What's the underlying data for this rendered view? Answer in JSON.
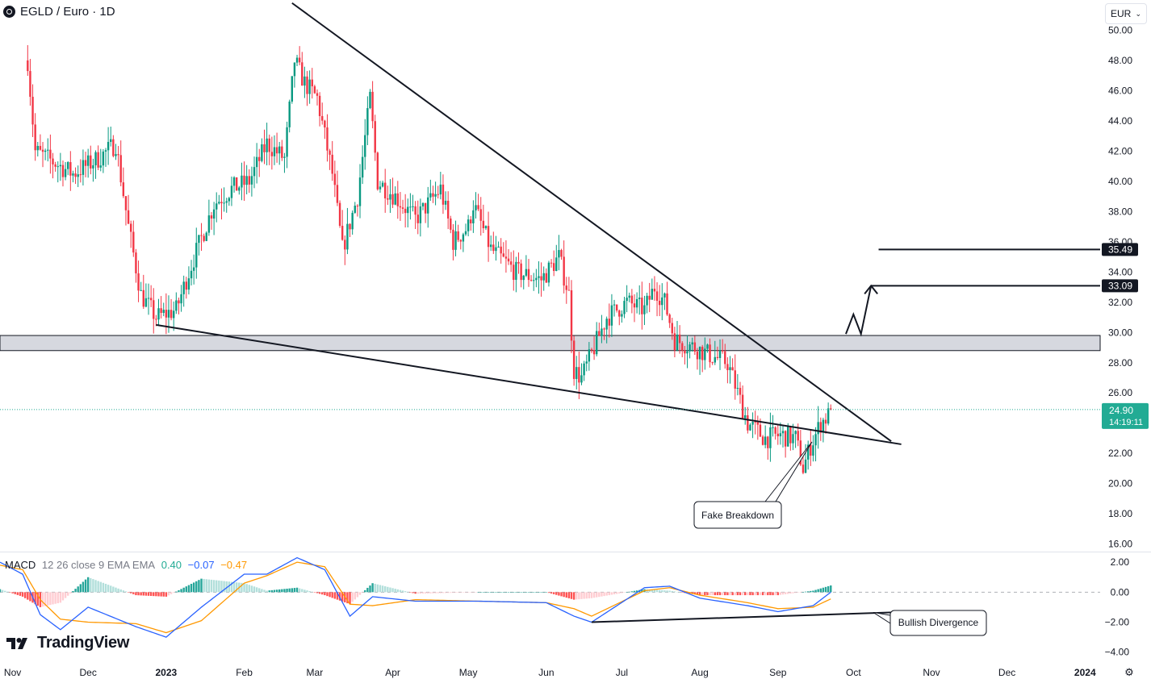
{
  "header": {
    "symbol_title": "EGLD / Euro · 1D",
    "currency_button": "EUR"
  },
  "macd_legend": {
    "name": "MACD",
    "params": "12 26 close 9 EMA EMA",
    "histogram": "0.40",
    "macd": "−0.07",
    "signal": "−0.47",
    "colors": {
      "histogram": "#22ab94",
      "macd": "#2962ff",
      "signal": "#ff9800"
    }
  },
  "branding": {
    "logo_text": "TradingView"
  },
  "chart_data": [
    {
      "type": "candlestick",
      "title": "EGLD / Euro · 1D",
      "y_axis": {
        "ticks": [
          16,
          18,
          20,
          22,
          24,
          26,
          28,
          30,
          32,
          34,
          36,
          38,
          40,
          42,
          44,
          46,
          48,
          50
        ],
        "ylim": [
          15.5,
          52
        ]
      },
      "x_axis": {
        "ticks": [
          "Nov",
          "Dec",
          "2023",
          "Feb",
          "Mar",
          "Apr",
          "May",
          "Jun",
          "Jul",
          "Aug",
          "Sep",
          "Oct",
          "Nov",
          "Dec",
          "2024"
        ],
        "xlim": [
          "2022-10-27",
          "2024-01-07"
        ]
      },
      "price_key_points": [
        {
          "date": "2022-11-07",
          "close": 48.0
        },
        {
          "date": "2022-11-10",
          "close": 42.0
        },
        {
          "date": "2022-11-15",
          "close": 41.5
        },
        {
          "date": "2022-11-25",
          "close": 40.5
        },
        {
          "date": "2022-12-05",
          "close": 41.5
        },
        {
          "date": "2022-12-12",
          "close": 42.5
        },
        {
          "date": "2022-12-17",
          "close": 37.0
        },
        {
          "date": "2022-12-22",
          "close": 32.5
        },
        {
          "date": "2022-12-28",
          "close": 31.0
        },
        {
          "date": "2023-01-05",
          "close": 31.5
        },
        {
          "date": "2023-01-10",
          "close": 34.0
        },
        {
          "date": "2023-01-20",
          "close": 38.5
        },
        {
          "date": "2023-01-27",
          "close": 39.5
        },
        {
          "date": "2023-02-03",
          "close": 40.0
        },
        {
          "date": "2023-02-10",
          "close": 42.5
        },
        {
          "date": "2023-02-17",
          "close": 41.5
        },
        {
          "date": "2023-02-21",
          "close": 48.0
        },
        {
          "date": "2023-02-25",
          "close": 46.5
        },
        {
          "date": "2023-03-02",
          "close": 45.5
        },
        {
          "date": "2023-03-08",
          "close": 40.5
        },
        {
          "date": "2023-03-12",
          "close": 35.5
        },
        {
          "date": "2023-03-18",
          "close": 39.0
        },
        {
          "date": "2023-03-23",
          "close": 45.5
        },
        {
          "date": "2023-03-26",
          "close": 40.0
        },
        {
          "date": "2023-04-02",
          "close": 39.0
        },
        {
          "date": "2023-04-10",
          "close": 37.5
        },
        {
          "date": "2023-04-20",
          "close": 39.5
        },
        {
          "date": "2023-04-25",
          "close": 36.0
        },
        {
          "date": "2023-05-01",
          "close": 37.0
        },
        {
          "date": "2023-05-03",
          "close": 38.5
        },
        {
          "date": "2023-05-10",
          "close": 35.5
        },
        {
          "date": "2023-05-20",
          "close": 34.0
        },
        {
          "date": "2023-05-30",
          "close": 33.5
        },
        {
          "date": "2023-06-06",
          "close": 35.0
        },
        {
          "date": "2023-06-10",
          "close": 32.5
        },
        {
          "date": "2023-06-12",
          "close": 27.5
        },
        {
          "date": "2023-06-15",
          "close": 27.0
        },
        {
          "date": "2023-06-20",
          "close": 29.0
        },
        {
          "date": "2023-06-25",
          "close": 31.0
        },
        {
          "date": "2023-07-03",
          "close": 32.0
        },
        {
          "date": "2023-07-10",
          "close": 31.5
        },
        {
          "date": "2023-07-14",
          "close": 33.0
        },
        {
          "date": "2023-07-18",
          "close": 32.0
        },
        {
          "date": "2023-07-22",
          "close": 29.5
        },
        {
          "date": "2023-07-30",
          "close": 29.0
        },
        {
          "date": "2023-08-05",
          "close": 28.5
        },
        {
          "date": "2023-08-12",
          "close": 28.0
        },
        {
          "date": "2023-08-16",
          "close": 26.0
        },
        {
          "date": "2023-08-20",
          "close": 24.0
        },
        {
          "date": "2023-08-27",
          "close": 23.0
        },
        {
          "date": "2023-09-02",
          "close": 23.2
        },
        {
          "date": "2023-09-08",
          "close": 23.0
        },
        {
          "date": "2023-09-11",
          "close": 21.0
        },
        {
          "date": "2023-09-14",
          "close": 22.5
        },
        {
          "date": "2023-09-18",
          "close": 24.0
        },
        {
          "date": "2023-09-21",
          "close": 24.5
        },
        {
          "date": "2023-09-22",
          "close": 24.9
        }
      ],
      "candle_colors": {
        "up": "#089981",
        "down": "#f23645"
      },
      "last_price": {
        "value": "24.90",
        "countdown": "14:19:11",
        "color": "#22ab94"
      },
      "price_labels": [
        {
          "value": "35.49"
        },
        {
          "value": "33.09"
        }
      ],
      "support_zone": [
        28.8,
        29.8
      ],
      "drawings": {
        "upper_trendline": [
          {
            "date": "2023-02-20",
            "price": 51.8
          },
          {
            "date": "2023-10-16",
            "price": 22.8
          }
        ],
        "lower_trendline": [
          {
            "date": "2022-12-28",
            "price": 30.5
          },
          {
            "date": "2023-10-20",
            "price": 22.6
          }
        ],
        "target_lines": [
          {
            "price": 35.49,
            "from": "2023-10-11"
          },
          {
            "price": 33.09,
            "from": "2023-10-08"
          }
        ],
        "projection_path": [
          {
            "date": "2023-09-28",
            "price": 29.9
          },
          {
            "date": "2023-10-01",
            "price": 31.2
          },
          {
            "date": "2023-10-04",
            "price": 29.9
          },
          {
            "date": "2023-10-08",
            "price": 33.09
          }
        ]
      },
      "annotations": [
        {
          "text": "Fake Breakdown"
        },
        {
          "text": "Bullish Divergence"
        }
      ]
    },
    {
      "type": "macd",
      "title": "MACD 12 26 close 9 EMA EMA",
      "y_axis": {
        "ticks": [
          "2.00",
          "0.00",
          "−2.00",
          "−4.00"
        ],
        "ylim": [
          -4.5,
          2.6
        ]
      },
      "key_points": [
        {
          "date": "2022-10-27",
          "macd": 2.0,
          "signal": 1.8
        },
        {
          "date": "2022-11-05",
          "macd": 1.2,
          "signal": 1.5
        },
        {
          "date": "2022-11-12",
          "macd": -1.5,
          "signal": -0.5
        },
        {
          "date": "2022-11-20",
          "macd": -2.5,
          "signal": -1.8
        },
        {
          "date": "2022-12-01",
          "macd": -1.0,
          "signal": -2.0
        },
        {
          "date": "2022-12-20",
          "macd": -2.3,
          "signal": -2.1
        },
        {
          "date": "2023-01-01",
          "macd": -3.0,
          "signal": -2.7
        },
        {
          "date": "2023-01-15",
          "macd": -1.0,
          "signal": -1.9
        },
        {
          "date": "2023-02-01",
          "macd": 1.2,
          "signal": 0.6
        },
        {
          "date": "2023-02-10",
          "macd": 1.2,
          "signal": 1.1
        },
        {
          "date": "2023-02-22",
          "macd": 2.3,
          "signal": 2.0
        },
        {
          "date": "2023-03-05",
          "macd": 1.5,
          "signal": 1.7
        },
        {
          "date": "2023-03-15",
          "macd": -1.6,
          "signal": -0.8
        },
        {
          "date": "2023-03-24",
          "macd": -0.3,
          "signal": -0.9
        },
        {
          "date": "2023-04-10",
          "macd": -0.6,
          "signal": -0.5
        },
        {
          "date": "2023-05-05",
          "macd": -0.6,
          "signal": -0.6
        },
        {
          "date": "2023-06-01",
          "macd": -0.7,
          "signal": -0.7
        },
        {
          "date": "2023-06-12",
          "macd": -1.6,
          "signal": -1.1
        },
        {
          "date": "2023-06-19",
          "macd": -2.0,
          "signal": -1.6
        },
        {
          "date": "2023-07-10",
          "macd": 0.3,
          "signal": 0.1
        },
        {
          "date": "2023-07-20",
          "macd": 0.4,
          "signal": 0.3
        },
        {
          "date": "2023-08-01",
          "macd": -0.4,
          "signal": -0.2
        },
        {
          "date": "2023-08-20",
          "macd": -0.9,
          "signal": -0.7
        },
        {
          "date": "2023-09-01",
          "macd": -1.3,
          "signal": -1.1
        },
        {
          "date": "2023-09-15",
          "macd": -0.9,
          "signal": -1.0
        },
        {
          "date": "2023-09-22",
          "macd": 0.0,
          "signal": -0.45
        }
      ]
    }
  ]
}
